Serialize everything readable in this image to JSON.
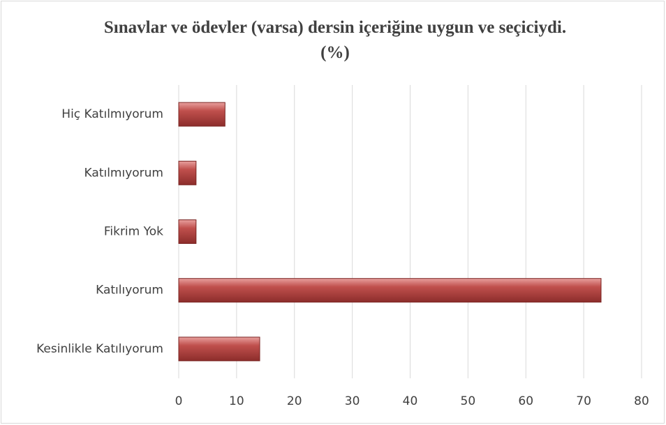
{
  "chart_data": {
    "type": "bar",
    "orientation": "horizontal",
    "title": "Sınavlar ve ödevler (varsa) dersin içeriğine uygun ve seçiciydi. (%)",
    "categories": [
      "Hiç Katılmıyorum",
      "Katılmıyorum",
      "Fikrim Yok",
      "Katılıyorum",
      "Kesinlikle Katılıyorum"
    ],
    "values": [
      8,
      3,
      3,
      73,
      14
    ],
    "color": "#c0504d",
    "xlim": [
      0,
      80
    ],
    "xticks": [
      0,
      10,
      20,
      30,
      40,
      50,
      60,
      70,
      80
    ],
    "grid": true
  }
}
